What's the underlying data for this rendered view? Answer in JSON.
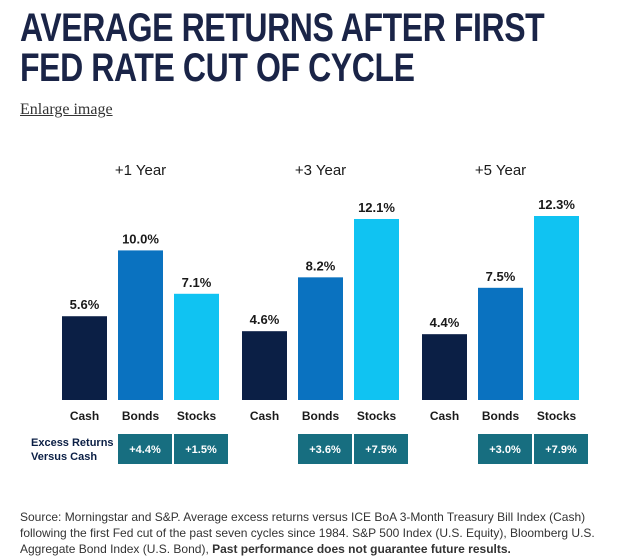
{
  "page": {
    "headline_line1": "AVERAGE RETURNS AFTER FIRST",
    "headline_line2": "FED RATE CUT OF CYCLE",
    "enlarge_link": "Enlarge image",
    "source_text": "Source: Morningstar and S&P. Average excess returns versus ICE BoA 3-Month Treasury Bill Index (Cash) following the first Fed cut of the past seven cycles since 1984. S&P 500 Index (U.S. Equity), Bloomberg U.S. Aggregate Bond Index (U.S. Bond), ",
    "source_bold": "Past performance does not guarantee future results."
  },
  "chart_data": {
    "type": "bar",
    "title": "",
    "categories": [
      "Cash",
      "Bonds",
      "Stocks"
    ],
    "colors": {
      "Cash": "#0b1f45",
      "Bonds": "#0a72c0",
      "Stocks": "#10c3f2",
      "excess_box": "#176e80"
    },
    "ylim": [
      0,
      12.3
    ],
    "grid": false,
    "groups": [
      {
        "label": "+1 Year",
        "values": [
          5.6,
          10.0,
          7.1
        ],
        "value_labels": [
          "5.6%",
          "10.0%",
          "7.1%"
        ],
        "excess": [
          "+4.4%",
          "+1.5%"
        ]
      },
      {
        "label": "+3 Year",
        "values": [
          4.6,
          8.2,
          12.1
        ],
        "value_labels": [
          "4.6%",
          "8.2%",
          "12.1%"
        ],
        "excess": [
          "+3.6%",
          "+7.5%"
        ]
      },
      {
        "label": "+5 Year",
        "values": [
          4.4,
          7.5,
          12.3
        ],
        "value_labels": [
          "4.4%",
          "7.5%",
          "12.3%"
        ],
        "excess": [
          "+3.0%",
          "+7.9%"
        ]
      }
    ],
    "excess_label_line1": "Excess Returns",
    "excess_label_line2": "Versus Cash"
  }
}
